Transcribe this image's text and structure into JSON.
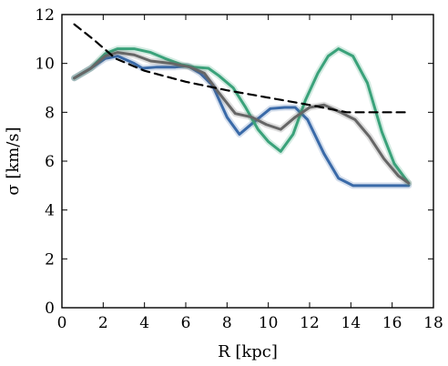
{
  "chart_data": {
    "type": "line",
    "xlabel": "R [kpc]",
    "ylabel": "σ [km/s]",
    "xlim": [
      0,
      18
    ],
    "ylim": [
      0,
      12
    ],
    "xticks": [
      0,
      2,
      4,
      6,
      8,
      10,
      12,
      14,
      16,
      18
    ],
    "yticks": [
      0,
      2,
      4,
      6,
      8,
      10,
      12
    ],
    "grid": false,
    "series": [
      {
        "color": "#3a6aa8",
        "style": "solid",
        "points": [
          [
            0.6,
            9.4
          ],
          [
            1.4,
            9.8
          ],
          [
            2.1,
            10.2
          ],
          [
            2.7,
            10.3
          ],
          [
            3.5,
            10.0
          ],
          [
            3.9,
            9.8
          ],
          [
            4.6,
            9.85
          ],
          [
            5.5,
            9.85
          ],
          [
            6.1,
            9.9
          ],
          [
            6.7,
            9.6
          ],
          [
            7.3,
            9.1
          ],
          [
            8.0,
            7.8
          ],
          [
            8.6,
            7.1
          ],
          [
            9.3,
            7.6
          ],
          [
            10.1,
            8.15
          ],
          [
            10.8,
            8.2
          ],
          [
            11.3,
            8.2
          ],
          [
            11.9,
            7.7
          ],
          [
            12.7,
            6.3
          ],
          [
            13.4,
            5.3
          ],
          [
            14.1,
            5.0
          ],
          [
            15.0,
            5.0
          ],
          [
            16.0,
            5.0
          ],
          [
            16.8,
            5.0
          ]
        ]
      },
      {
        "color": "#3aa27a",
        "style": "solid",
        "points": [
          [
            0.6,
            9.4
          ],
          [
            1.4,
            9.8
          ],
          [
            2.1,
            10.4
          ],
          [
            2.7,
            10.6
          ],
          [
            3.5,
            10.6
          ],
          [
            4.3,
            10.45
          ],
          [
            5.0,
            10.2
          ],
          [
            5.8,
            9.95
          ],
          [
            6.4,
            9.85
          ],
          [
            7.1,
            9.8
          ],
          [
            7.6,
            9.5
          ],
          [
            8.3,
            9.0
          ],
          [
            8.9,
            8.2
          ],
          [
            9.5,
            7.3
          ],
          [
            10.0,
            6.8
          ],
          [
            10.6,
            6.4
          ],
          [
            11.2,
            7.1
          ],
          [
            11.8,
            8.5
          ],
          [
            12.4,
            9.6
          ],
          [
            12.9,
            10.3
          ],
          [
            13.4,
            10.6
          ],
          [
            14.1,
            10.3
          ],
          [
            14.8,
            9.2
          ],
          [
            15.5,
            7.2
          ],
          [
            16.1,
            5.9
          ],
          [
            16.8,
            5.1
          ]
        ]
      },
      {
        "color": "#666666",
        "style": "solid",
        "points": [
          [
            0.6,
            9.4
          ],
          [
            1.4,
            9.8
          ],
          [
            2.1,
            10.3
          ],
          [
            2.7,
            10.45
          ],
          [
            3.5,
            10.35
          ],
          [
            4.3,
            10.1
          ],
          [
            5.3,
            10.0
          ],
          [
            6.2,
            9.85
          ],
          [
            6.9,
            9.6
          ],
          [
            7.6,
            8.8
          ],
          [
            8.4,
            7.95
          ],
          [
            9.2,
            7.8
          ],
          [
            9.9,
            7.5
          ],
          [
            10.6,
            7.3
          ],
          [
            11.3,
            7.8
          ],
          [
            12.0,
            8.2
          ],
          [
            12.7,
            8.3
          ],
          [
            13.5,
            8.0
          ],
          [
            14.2,
            7.7
          ],
          [
            14.9,
            7.0
          ],
          [
            15.6,
            6.1
          ],
          [
            16.3,
            5.4
          ],
          [
            16.8,
            5.1
          ]
        ]
      },
      {
        "color": "#000000",
        "style": "dashed",
        "points": [
          [
            0.6,
            11.6
          ],
          [
            1.5,
            11.0
          ],
          [
            2.6,
            10.2
          ],
          [
            4.0,
            9.7
          ],
          [
            6.0,
            9.25
          ],
          [
            8.0,
            8.9
          ],
          [
            10.0,
            8.6
          ],
          [
            12.0,
            8.3
          ],
          [
            13.8,
            8.0
          ],
          [
            16.8,
            8.0
          ]
        ]
      }
    ]
  }
}
